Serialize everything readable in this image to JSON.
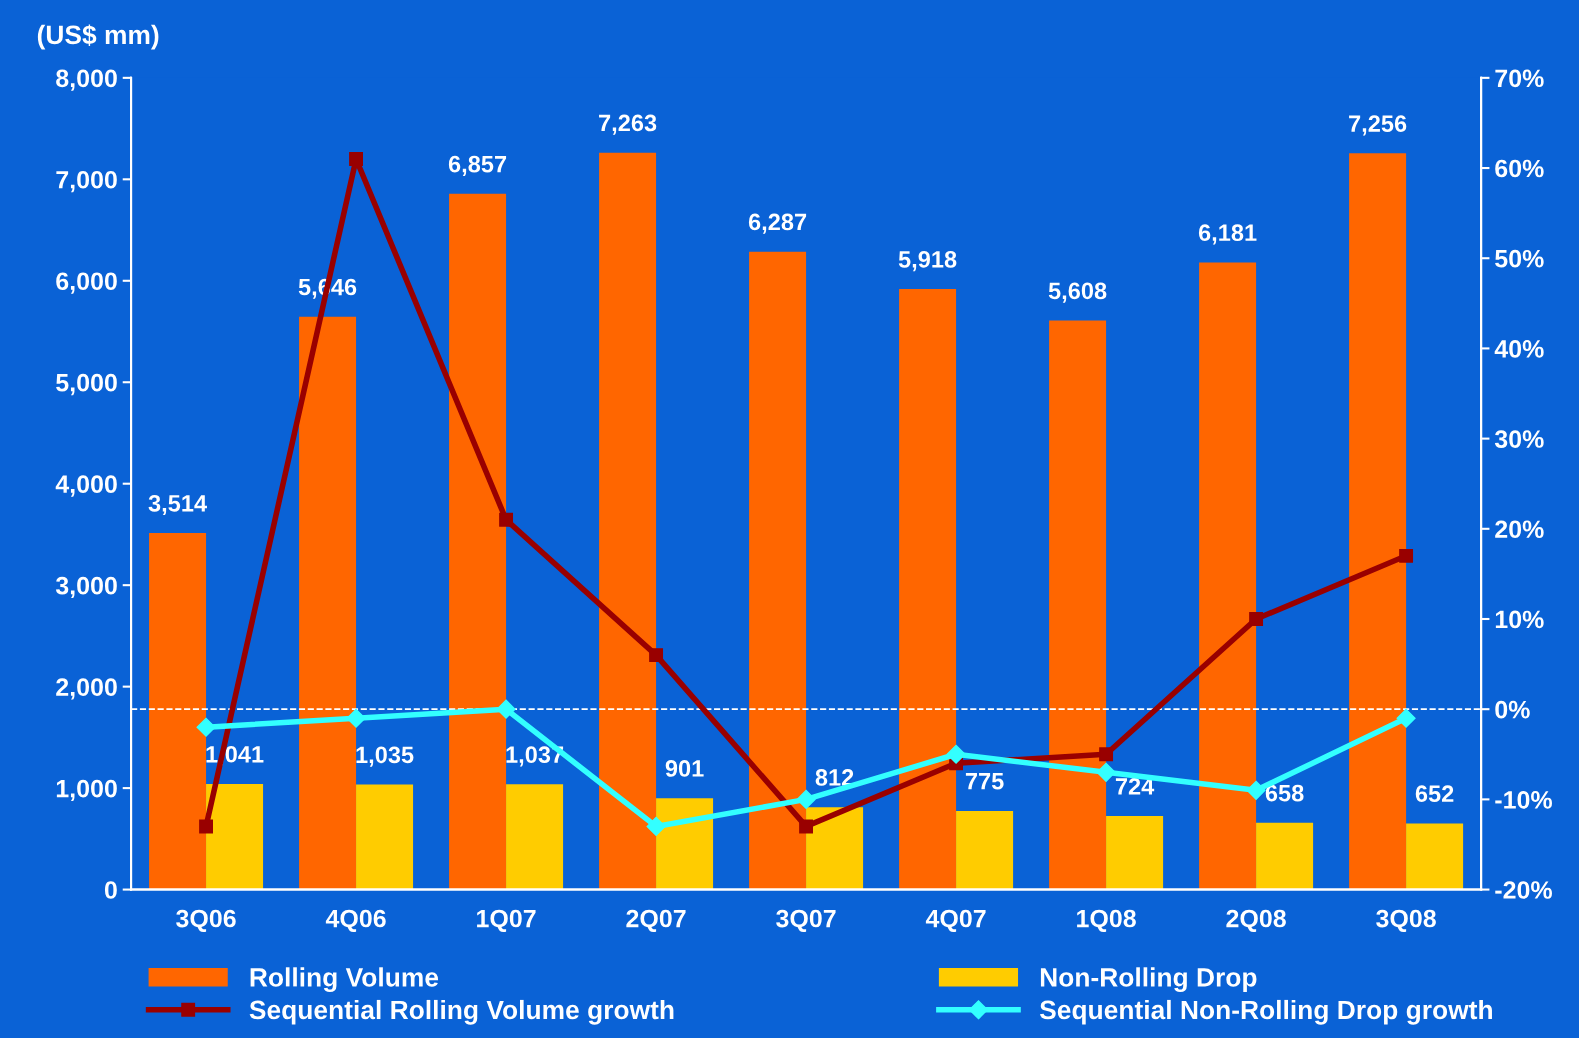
{
  "chart_data": {
    "type": "bar",
    "ylabel": "(US$ mm)",
    "categories": [
      "3Q06",
      "4Q06",
      "1Q07",
      "2Q07",
      "3Q07",
      "4Q07",
      "1Q08",
      "2Q08",
      "3Q08"
    ],
    "series": [
      {
        "name": "Rolling Volume",
        "color": "#ff6600",
        "values": [
          3514,
          5646,
          6857,
          7263,
          6287,
          5918,
          5608,
          6181,
          7256
        ],
        "value_labels": [
          "3,514",
          "5,646",
          "6,857",
          "7,263",
          "6,287",
          "5,918",
          "5,608",
          "6,181",
          "7,256"
        ]
      },
      {
        "name": "Non-Rolling Drop",
        "color": "#ffcc00",
        "values": [
          1041,
          1035,
          1037,
          901,
          812,
          775,
          724,
          658,
          652
        ],
        "value_labels": [
          "1,041",
          "1,035",
          "1,037",
          "901",
          "812",
          "775",
          "724",
          "658",
          "652"
        ]
      },
      {
        "name": "Sequential Rolling Volume growth",
        "type": "line",
        "axis": "y2",
        "color": "#990000",
        "marker": "square",
        "values": [
          -13,
          61,
          21,
          6,
          -13,
          -6,
          -5,
          10,
          17
        ]
      },
      {
        "name": "Sequential Non-Rolling Drop growth",
        "type": "line",
        "axis": "y2",
        "color": "#33ffff",
        "marker": "diamond",
        "values": [
          -2,
          -1,
          0,
          -13,
          -10,
          -5,
          -7,
          -9,
          -1
        ]
      }
    ],
    "ylim": [
      0,
      8000
    ],
    "yticks": [
      {
        "value": 0,
        "label": "0"
      },
      {
        "value": 1000,
        "label": "1,000"
      },
      {
        "value": 2000,
        "label": "2,000"
      },
      {
        "value": 3000,
        "label": "3,000"
      },
      {
        "value": 4000,
        "label": "4,000"
      },
      {
        "value": 5000,
        "label": "5,000"
      },
      {
        "value": 6000,
        "label": "6,000"
      },
      {
        "value": 7000,
        "label": "7,000"
      },
      {
        "value": 8000,
        "label": "8,000"
      }
    ],
    "y2lim": [
      -20,
      70
    ],
    "y2ticks": [
      {
        "value": -20,
        "label": "-20%"
      },
      {
        "value": -10,
        "label": "-10%"
      },
      {
        "value": 0,
        "label": "0%"
      },
      {
        "value": 10,
        "label": "10%"
      },
      {
        "value": 20,
        "label": "20%"
      },
      {
        "value": 30,
        "label": "30%"
      },
      {
        "value": 40,
        "label": "40%"
      },
      {
        "value": 50,
        "label": "50%"
      },
      {
        "value": 60,
        "label": "60%"
      },
      {
        "value": 70,
        "label": "70%"
      }
    ],
    "ref_lines": [
      {
        "axis": "y2",
        "value": 0,
        "color": "#ffffff",
        "line_style": "dashed"
      }
    ],
    "grid": false,
    "legend": "bottom"
  }
}
